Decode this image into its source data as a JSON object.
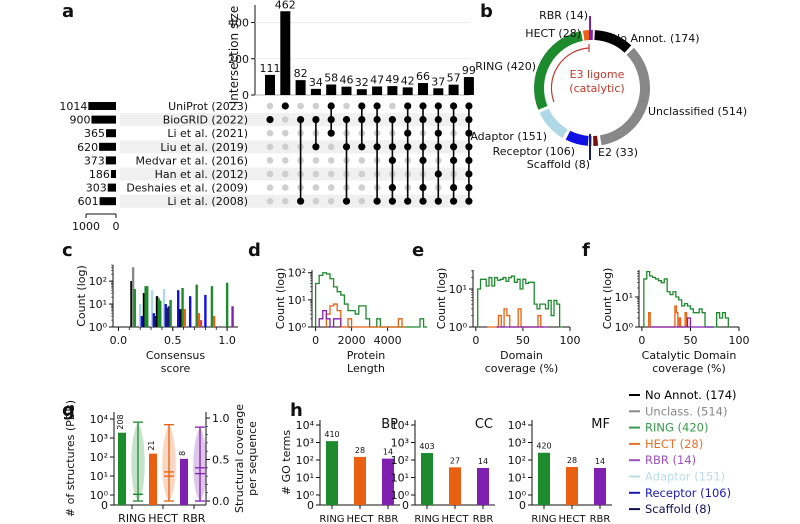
{
  "chart_data": [
    {
      "panel": "a",
      "type": "bar",
      "subtype": "upset",
      "ylabel": "Intersection size",
      "yticks": [
        0,
        200,
        400
      ],
      "ylim": [
        0,
        480
      ],
      "intersection_sizes": [
        111,
        462,
        82,
        34,
        58,
        46,
        32,
        47,
        49,
        42,
        66,
        37,
        57,
        99
      ],
      "sets": [
        {
          "name": "UniProt (2023)",
          "size": 1014
        },
        {
          "name": "BioGRID (2022)",
          "size": 900
        },
        {
          "name": "Li et al. (2021)",
          "size": 365
        },
        {
          "name": "Liu et al. (2019)",
          "size": 620
        },
        {
          "name": "Medvar et al. (2016)",
          "size": 373
        },
        {
          "name": "Han et al. (2012)",
          "size": 186
        },
        {
          "name": "Deshaies et al. (2009)",
          "size": 303
        },
        {
          "name": "Li et al. (2008)",
          "size": 601
        }
      ],
      "set_size_ticks": [
        "1000",
        "0"
      ],
      "membership": [
        [
          1
        ],
        [
          0
        ],
        [
          1,
          7
        ],
        [
          1,
          3
        ],
        [
          0,
          1,
          2
        ],
        [
          1,
          3,
          7
        ],
        [
          0,
          1,
          3
        ],
        [
          0,
          1,
          3,
          7
        ],
        [
          1,
          3,
          4,
          6,
          7
        ],
        [
          0,
          1,
          2,
          3,
          7
        ],
        [
          0,
          1,
          3,
          4,
          6,
          7
        ],
        [
          0,
          1,
          2,
          3,
          5,
          7
        ],
        [
          0,
          1,
          3,
          4,
          6,
          7
        ],
        [
          0,
          1,
          2,
          3,
          4,
          5,
          6,
          7
        ]
      ]
    },
    {
      "panel": "b",
      "type": "pie",
      "subtype": "donut",
      "center_label": [
        "E3 ligome",
        "(catalytic)"
      ],
      "slices": [
        {
          "label": "No Annot. (174)",
          "value": 174,
          "color": "#000000"
        },
        {
          "label": "Unclassified (514)",
          "value": 514,
          "color": "#888888"
        },
        {
          "label": "E2 (33)",
          "value": 33,
          "color": "#7a1010"
        },
        {
          "label": "Scaffold (8)",
          "value": 8,
          "color": "#1a1a6e"
        },
        {
          "label": "Receptor (106)",
          "value": 106,
          "color": "#1010e0"
        },
        {
          "label": "Adaptor (151)",
          "value": 151,
          "color": "#aed8e6"
        },
        {
          "label": "RING (420)",
          "value": 420,
          "color": "#1e8a2e"
        },
        {
          "label": "HECT (28)",
          "value": 28,
          "color": "#e86010"
        },
        {
          "label": "RBR (14)",
          "value": 14,
          "color": "#8020b0"
        }
      ]
    },
    {
      "panel": "c",
      "type": "bar",
      "subtype": "histogram-log",
      "xlabel": "Consensus\nscore",
      "ylabel": "Count (log)",
      "xticks": [
        "0.0",
        "0.5",
        "1.0"
      ],
      "yticks": [
        "10⁰",
        "10¹",
        "10²"
      ],
      "xlim": [
        -0.05,
        1.1
      ],
      "ylog_range": [
        0,
        2.7
      ],
      "bars": [
        {
          "x": 0.12,
          "v": 100,
          "c": "#000000"
        },
        {
          "x": 0.135,
          "v": 400,
          "c": "#888888"
        },
        {
          "x": 0.15,
          "v": 45,
          "c": "#1e8a2e"
        },
        {
          "x": 0.2,
          "v": 10,
          "c": "#aed8e6"
        },
        {
          "x": 0.215,
          "v": 3,
          "c": "#1010e0"
        },
        {
          "x": 0.235,
          "v": 30,
          "c": "#000000"
        },
        {
          "x": 0.25,
          "v": 60,
          "c": "#1e8a2e"
        },
        {
          "x": 0.265,
          "v": 60,
          "c": "#1e8a2e"
        },
        {
          "x": 0.31,
          "v": 40,
          "c": "#aed8e6"
        },
        {
          "x": 0.325,
          "v": 4,
          "c": "#1010e0"
        },
        {
          "x": 0.34,
          "v": 3,
          "c": "#1a1a6e"
        },
        {
          "x": 0.355,
          "v": 22,
          "c": "#000000"
        },
        {
          "x": 0.37,
          "v": 18,
          "c": "#1e8a2e"
        },
        {
          "x": 0.385,
          "v": 14,
          "c": "#1e8a2e"
        },
        {
          "x": 0.42,
          "v": 45,
          "c": "#aed8e6"
        },
        {
          "x": 0.435,
          "v": 10,
          "c": "#1010e0"
        },
        {
          "x": 0.45,
          "v": 7,
          "c": "#1a1a6e"
        },
        {
          "x": 0.465,
          "v": 8,
          "c": "#1a1a6e"
        },
        {
          "x": 0.48,
          "v": 15,
          "c": "#1e8a2e"
        },
        {
          "x": 0.55,
          "v": 40,
          "c": "#1010e0"
        },
        {
          "x": 0.57,
          "v": 6,
          "c": "#000000"
        },
        {
          "x": 0.59,
          "v": 50,
          "c": "#1e8a2e"
        },
        {
          "x": 0.61,
          "v": 6,
          "c": "#e86010"
        },
        {
          "x": 0.66,
          "v": 22,
          "c": "#1010e0"
        },
        {
          "x": 0.72,
          "v": 70,
          "c": "#1e8a2e"
        },
        {
          "x": 0.74,
          "v": 4,
          "c": "#e86010"
        },
        {
          "x": 0.76,
          "v": 2,
          "c": "#cc4466"
        },
        {
          "x": 0.8,
          "v": 25,
          "c": "#1010e0"
        },
        {
          "x": 0.86,
          "v": 60,
          "c": "#1e8a2e"
        },
        {
          "x": 0.88,
          "v": 3,
          "c": "#e86010"
        },
        {
          "x": 1.0,
          "v": 85,
          "c": "#1e8a2e"
        },
        {
          "x": 1.05,
          "v": 8,
          "c": "#8020b0"
        }
      ]
    },
    {
      "panel": "d",
      "type": "line",
      "subtype": "step-histogram-log",
      "xlabel": "Protein\nLength",
      "ylabel": "Count (log)",
      "xticks": [
        "0",
        "2000",
        "4000"
      ],
      "yticks": [
        "10⁰",
        "10¹",
        "10²"
      ],
      "xlim": [
        -200,
        5800
      ],
      "ylog_range": [
        0,
        2.1
      ],
      "series": [
        {
          "name": "RING",
          "color": "#1e8a2e",
          "bin_edges_start": 0,
          "bin_width": 200,
          "values": [
            40,
            80,
            100,
            90,
            60,
            30,
            20,
            15,
            7,
            4,
            4,
            3,
            6,
            6,
            2,
            1,
            1,
            2,
            1,
            0,
            0,
            0,
            1,
            1,
            1,
            1,
            1,
            1,
            0,
            2,
            1
          ]
        },
        {
          "name": "HECT",
          "color": "#e86010",
          "bin_edges_start": 600,
          "bin_width": 200,
          "values": [
            3,
            6,
            7,
            4,
            1,
            1,
            2,
            1,
            1,
            1,
            0,
            0,
            0,
            0,
            0,
            1,
            1,
            0,
            0,
            0,
            2,
            1
          ]
        },
        {
          "name": "RBR",
          "color": "#8020b0",
          "bin_edges_start": 200,
          "bin_width": 200,
          "values": [
            2,
            4,
            2,
            1,
            2,
            2
          ]
        }
      ]
    },
    {
      "panel": "e",
      "type": "line",
      "subtype": "step-histogram-log",
      "xlabel": "Domain\ncoverage (%)",
      "ylabel": "Count (log)",
      "xticks": [
        "0",
        "50",
        "100"
      ],
      "yticks": [
        "10⁰",
        "10¹"
      ],
      "xlim": [
        -3,
        100
      ],
      "ylog_range": [
        0,
        1.5
      ],
      "series": [
        {
          "name": "RING",
          "color": "#1e8a2e",
          "bin_edges_start": 2,
          "bin_width": 3,
          "values": [
            10,
            18,
            18,
            12,
            20,
            12,
            20,
            17,
            18,
            20,
            16,
            20,
            22,
            15,
            18,
            10,
            18,
            14,
            15,
            15,
            4,
            3,
            4,
            4,
            3,
            5,
            2,
            5,
            4,
            1
          ]
        },
        {
          "name": "HECT",
          "color": "#e86010",
          "bin_edges_start": 12,
          "bin_width": 3,
          "values": [
            1,
            1,
            1,
            1,
            2,
            1,
            3,
            2,
            1,
            1,
            1,
            3,
            1,
            0,
            0,
            0,
            0,
            0,
            2,
            1
          ]
        },
        {
          "name": "RBR",
          "color": "#8020b0",
          "bin_edges_start": 22,
          "bin_width": 3,
          "values": [
            1,
            1,
            1,
            1,
            1,
            0,
            0,
            0,
            0,
            0,
            0,
            0,
            0,
            1,
            1,
            1,
            1,
            1
          ]
        }
      ]
    },
    {
      "panel": "f",
      "type": "line",
      "subtype": "step-histogram-log",
      "xlabel": "Catalytic Domain\ncoverage (%)",
      "ylabel": "Count (log)",
      "xticks": [
        "0",
        "50",
        "100"
      ],
      "yticks": [
        "10⁰",
        "10¹"
      ],
      "xlim": [
        -3,
        100
      ],
      "ylog_range": [
        0,
        1.9
      ],
      "series": [
        {
          "name": "RING",
          "color": "#1e8a2e",
          "bin_edges_start": 2,
          "bin_width": 3,
          "values": [
            40,
            70,
            50,
            45,
            40,
            35,
            30,
            40,
            15,
            12,
            15,
            10,
            8,
            5,
            6,
            5,
            4,
            3,
            3,
            4,
            3,
            1,
            1,
            1,
            1,
            3,
            2,
            3,
            2
          ]
        },
        {
          "name": "HECT",
          "color": "#e86010",
          "bin_edges_start": 7,
          "bin_width": 1.5,
          "values": [
            3,
            0,
            0,
            0,
            0,
            0,
            0,
            0,
            0,
            0,
            0,
            0,
            0,
            0,
            0,
            0,
            0,
            0,
            5,
            3,
            0,
            2,
            0,
            0,
            0,
            3,
            1
          ]
        },
        {
          "name": "RBR",
          "color": "#8020b0",
          "bin_edges_start": 8,
          "bin_width": 3,
          "values": [
            1,
            1,
            0,
            0,
            1,
            1,
            1,
            1,
            1,
            1,
            1,
            1,
            1,
            2,
            0,
            0,
            0,
            0,
            0,
            0,
            0,
            1
          ]
        }
      ]
    },
    {
      "panel": "g",
      "type": "bar",
      "subtype": "bar-plus-violin",
      "ylabel": "# of structures (PDB)",
      "ylabel_right": "Structural coverage\nper sequence",
      "categories": [
        "RING",
        "HECT",
        "RBR"
      ],
      "yticks_left": [
        "0",
        "10⁰",
        "10¹",
        "10²",
        "10³",
        "10⁴"
      ],
      "yticks_right": [
        "0.0",
        "0.5",
        "1.0"
      ],
      "bar_values": [
        1900,
        150,
        80
      ],
      "bar_labels": [
        "208",
        "21",
        "8"
      ],
      "violins": [
        {
          "min": 0.0,
          "max": 0.95,
          "median": 0.08,
          "mean": 0.08
        },
        {
          "min": 0.0,
          "max": 0.92,
          "median": 0.3,
          "mean": 0.35
        },
        {
          "min": 0.0,
          "max": 0.89,
          "median": 0.33,
          "mean": 0.4
        }
      ],
      "colors": [
        "#1e8a2e",
        "#e86010",
        "#8020b0"
      ]
    },
    {
      "panel": "h",
      "type": "bar",
      "subtype": "grouped-log",
      "ylabel": "# GO terms",
      "categories": [
        "RING",
        "HECT",
        "RBR"
      ],
      "yticks": [
        "0",
        "10⁰",
        "10¹",
        "10²",
        "10³",
        "10⁴"
      ],
      "colors": [
        "#1e8a2e",
        "#e86010",
        "#8020b0"
      ],
      "subplots": [
        {
          "title": "BP",
          "values": [
            1200,
            150,
            120
          ],
          "labels": [
            "410",
            "28",
            "14"
          ]
        },
        {
          "title": "CC",
          "values": [
            250,
            38,
            35
          ],
          "labels": [
            "403",
            "27",
            "14"
          ]
        },
        {
          "title": "MF",
          "values": [
            260,
            40,
            35
          ],
          "labels": [
            "420",
            "28",
            "14"
          ]
        }
      ]
    }
  ],
  "legend": [
    {
      "label": "No Annot. (174)",
      "color": "#000000"
    },
    {
      "label": "Unclass. (514)",
      "color": "#888888"
    },
    {
      "label": "RING (420)",
      "color": "#3a9a4e"
    },
    {
      "label": "HECT (28)",
      "color": "#e8702a"
    },
    {
      "label": "RBR (14)",
      "color": "#a050c0"
    },
    {
      "label": "Adaptor (151)",
      "color": "#b8dcea"
    },
    {
      "label": "Receptor (106)",
      "color": "#1a1ab0"
    },
    {
      "label": "Scaffold (8)",
      "color": "#101050"
    }
  ],
  "panel_letters": [
    "a",
    "b",
    "c",
    "d",
    "e",
    "f",
    "g",
    "h"
  ]
}
